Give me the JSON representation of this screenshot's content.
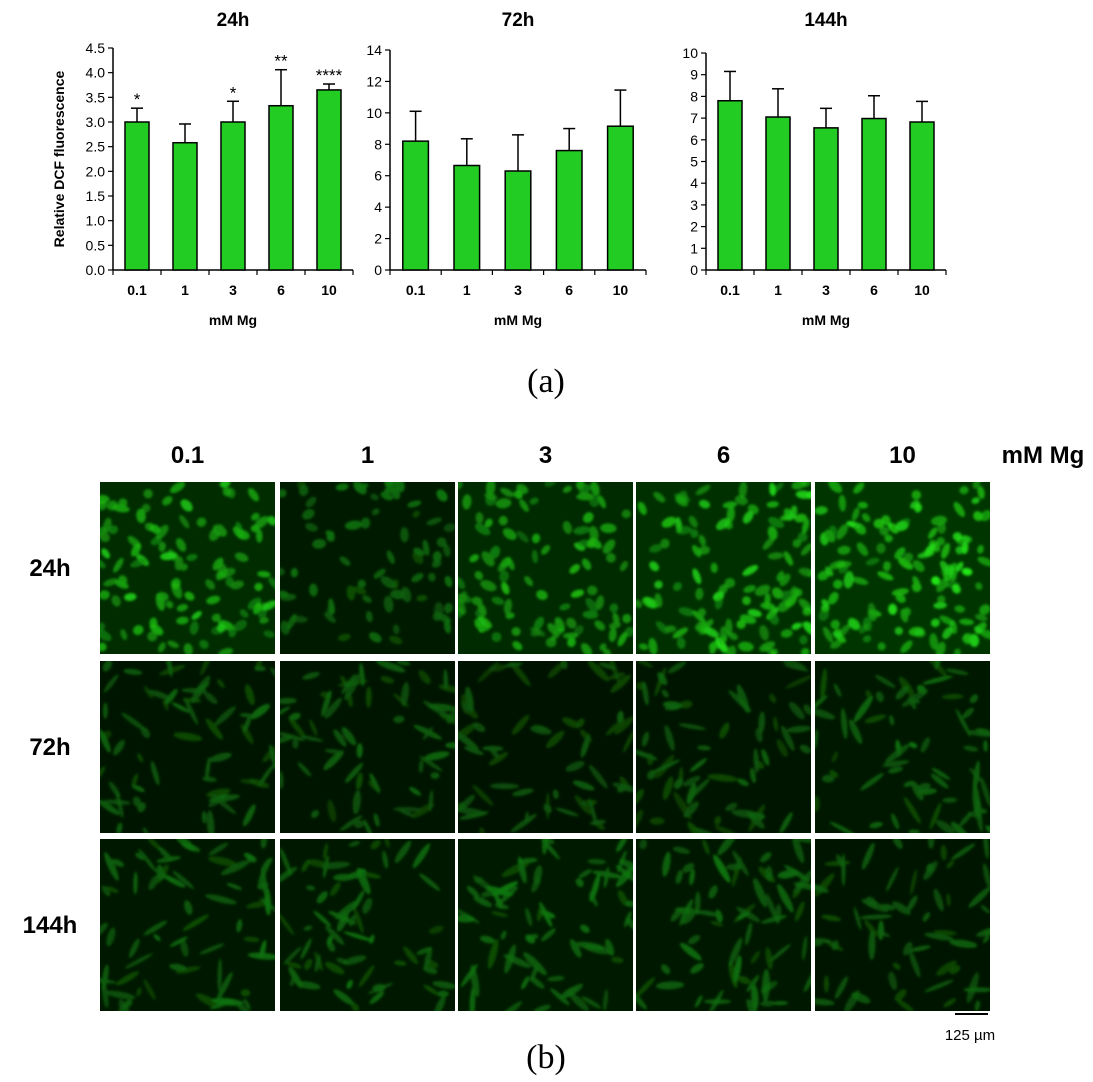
{
  "panel_labels": {
    "a": "(a)",
    "b": "(b)"
  },
  "chart_data": [
    {
      "type": "bar",
      "title": "24h",
      "xlabel": "mM Mg",
      "ylabel": "Relative DCF fluorescence",
      "categories": [
        "0.1",
        "1",
        "3",
        "6",
        "10"
      ],
      "values": [
        3.0,
        2.58,
        3.0,
        3.33,
        3.65
      ],
      "errors": [
        0.28,
        0.38,
        0.42,
        0.73,
        0.12
      ],
      "significance": [
        "*",
        "",
        "*",
        "**",
        "****"
      ],
      "ylim": [
        0,
        4.5
      ],
      "yticks": [
        "0.0",
        "0.5",
        "1.0",
        "1.5",
        "2.0",
        "2.5",
        "3.0",
        "3.5",
        "4.0",
        "4.5"
      ],
      "bar_color": "#22cc22",
      "grid": false
    },
    {
      "type": "bar",
      "title": "72h",
      "xlabel": "mM Mg",
      "ylabel": "",
      "categories": [
        "0.1",
        "1",
        "3",
        "6",
        "10"
      ],
      "values": [
        8.2,
        6.65,
        6.3,
        7.6,
        9.15
      ],
      "errors": [
        1.9,
        1.7,
        2.3,
        1.4,
        2.3
      ],
      "significance": [
        "",
        "",
        "",
        "",
        ""
      ],
      "ylim": [
        0,
        14
      ],
      "yticks": [
        "0",
        "2",
        "4",
        "6",
        "8",
        "10",
        "12",
        "14"
      ],
      "bar_color": "#22cc22",
      "grid": false
    },
    {
      "type": "bar",
      "title": "144h",
      "xlabel": "mM Mg",
      "ylabel": "",
      "categories": [
        "0.1",
        "1",
        "3",
        "6",
        "10"
      ],
      "values": [
        7.8,
        7.05,
        6.55,
        6.98,
        6.82
      ],
      "errors": [
        1.35,
        1.3,
        0.9,
        1.05,
        0.95
      ],
      "significance": [
        "",
        "",
        "",
        "",
        ""
      ],
      "ylim": [
        0,
        10
      ],
      "yticks": [
        "0",
        "1",
        "2",
        "3",
        "4",
        "5",
        "6",
        "7",
        "8",
        "9",
        "10"
      ],
      "bar_color": "#22cc22",
      "grid": false
    }
  ],
  "micrographs": {
    "column_headers": [
      "0.1",
      "1",
      "3",
      "6",
      "10"
    ],
    "column_unit": "mM Mg",
    "row_headers": [
      "24h",
      "72h",
      "144h"
    ],
    "scale_bar": "125 µm",
    "brightness": [
      [
        0.75,
        0.35,
        0.7,
        0.85,
        0.95
      ],
      [
        0.25,
        0.25,
        0.2,
        0.25,
        0.3
      ],
      [
        0.3,
        0.3,
        0.35,
        0.3,
        0.25
      ]
    ]
  }
}
